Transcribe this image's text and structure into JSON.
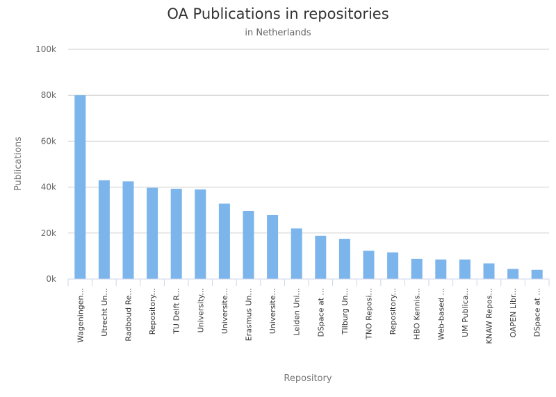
{
  "chart_data": {
    "type": "bar",
    "title": "OA Publications in repositories",
    "subtitle": "in Netherlands",
    "xlabel": "Repository",
    "ylabel": "Publications",
    "ylim": [
      0,
      100000
    ],
    "yticks": [
      0,
      20000,
      40000,
      60000,
      80000,
      100000
    ],
    "ytick_labels": [
      "0k",
      "20k",
      "40k",
      "60k",
      "80k",
      "100k"
    ],
    "grid": true,
    "bar_color": "#7cb5ec",
    "categories": [
      "Wageningen...",
      "Utrecht Un...",
      "Radboud Re...",
      "Repository...",
      "TU Delft R...",
      "University...",
      "Universite...",
      "Erasmus Un...",
      "Universite...",
      "Leiden Uni...",
      "DSpace at ...",
      "Tilburg Un...",
      "TNO Reposi...",
      "Repository...",
      "HBO Kennis...",
      "Web-based ...",
      "UM Publica...",
      "KNAW Repos...",
      "OAPEN Libr...",
      "DSpace at ..."
    ],
    "values": [
      80000,
      43000,
      42500,
      39700,
      39300,
      39000,
      32800,
      29600,
      27800,
      22000,
      18800,
      17500,
      12300,
      11600,
      8800,
      8500,
      8500,
      6800,
      4400,
      4000
    ]
  }
}
